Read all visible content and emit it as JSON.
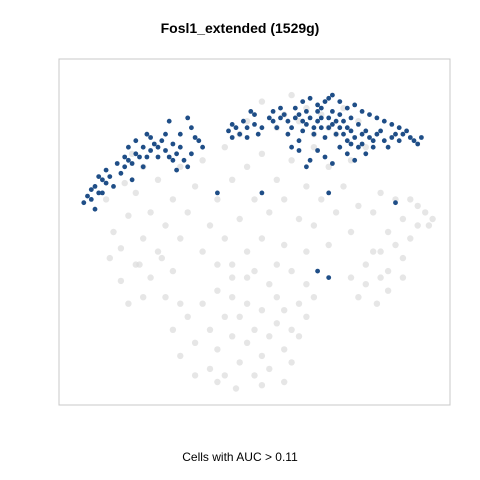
{
  "chart_data": {
    "type": "scatter",
    "title": "Fosl1_extended (1529g)",
    "caption": "Cells with AUC > 0.11",
    "xlim": [
      0,
      100
    ],
    "ylim": [
      0,
      100
    ],
    "grid": false,
    "axes_visible": false,
    "colors": {
      "background_cells": "#dcdcdc",
      "highlighted_cells": "#1f4e87",
      "frame": "#c8c8c8"
    },
    "series": [
      {
        "role": "background",
        "points": [
          [
            10,
            60
          ],
          [
            12,
            50
          ],
          [
            14,
            45
          ],
          [
            15,
            65
          ],
          [
            16,
            55
          ],
          [
            18,
            40
          ],
          [
            18,
            62
          ],
          [
            20,
            48
          ],
          [
            20,
            70
          ],
          [
            22,
            56
          ],
          [
            24,
            44
          ],
          [
            24,
            66
          ],
          [
            26,
            52
          ],
          [
            28,
            60
          ],
          [
            28,
            38
          ],
          [
            30,
            70
          ],
          [
            30,
            48
          ],
          [
            32,
            56
          ],
          [
            14,
            35
          ],
          [
            34,
            64
          ],
          [
            36,
            44
          ],
          [
            36,
            72
          ],
          [
            11,
            42
          ],
          [
            38,
            52
          ],
          [
            40,
            60
          ],
          [
            40,
            40
          ],
          [
            17,
            74
          ],
          [
            42,
            76
          ],
          [
            42,
            48
          ],
          [
            44,
            66
          ],
          [
            44,
            36
          ],
          [
            46,
            54
          ],
          [
            46,
            80
          ],
          [
            48,
            44
          ],
          [
            48,
            70
          ],
          [
            50,
            60
          ],
          [
            50,
            38
          ],
          [
            52,
            48
          ],
          [
            52,
            74
          ],
          [
            54,
            56
          ],
          [
            54,
            34
          ],
          [
            56,
            66
          ],
          [
            56,
            82
          ],
          [
            58,
            46
          ],
          [
            58,
            60
          ],
          [
            60,
            72
          ],
          [
            60,
            38
          ],
          [
            62,
            54
          ],
          [
            62,
            84
          ],
          [
            64,
            64
          ],
          [
            64,
            44
          ],
          [
            66,
            76
          ],
          [
            66,
            52
          ],
          [
            68,
            86
          ],
          [
            68,
            60
          ],
          [
            70,
            70
          ],
          [
            70,
            46
          ],
          [
            72,
            80
          ],
          [
            72,
            56
          ],
          [
            74,
            88
          ],
          [
            74,
            64
          ],
          [
            76,
            72
          ],
          [
            76,
            50
          ],
          [
            78,
            84
          ],
          [
            78,
            58
          ],
          [
            80,
            76
          ],
          [
            80,
            40
          ],
          [
            82,
            56
          ],
          [
            82,
            44
          ],
          [
            84,
            62
          ],
          [
            84,
            36
          ],
          [
            86,
            50
          ],
          [
            86,
            32
          ],
          [
            88,
            46
          ],
          [
            88,
            60
          ],
          [
            90,
            42
          ],
          [
            90,
            54
          ],
          [
            92,
            48
          ],
          [
            92,
            60
          ],
          [
            94,
            52
          ],
          [
            94,
            58
          ],
          [
            96,
            56
          ],
          [
            97,
            52
          ],
          [
            98,
            54
          ],
          [
            28,
            20
          ],
          [
            30,
            12
          ],
          [
            32,
            24
          ],
          [
            34,
            16
          ],
          [
            36,
            28
          ],
          [
            38,
            8
          ],
          [
            38,
            20
          ],
          [
            40,
            14
          ],
          [
            40,
            32
          ],
          [
            42,
            24
          ],
          [
            42,
            6
          ],
          [
            44,
            18
          ],
          [
            44,
            30
          ],
          [
            46,
            10
          ],
          [
            46,
            24
          ],
          [
            48,
            16
          ],
          [
            48,
            28
          ],
          [
            50,
            6
          ],
          [
            50,
            20
          ],
          [
            52,
            12
          ],
          [
            52,
            26
          ],
          [
            54,
            18
          ],
          [
            54,
            8
          ],
          [
            56,
            22
          ],
          [
            56,
            30
          ],
          [
            58,
            14
          ],
          [
            58,
            26
          ],
          [
            60,
            20
          ],
          [
            60,
            10
          ],
          [
            62,
            28
          ],
          [
            62,
            18
          ],
          [
            64,
            24
          ],
          [
            34,
            6
          ],
          [
            30,
            28
          ],
          [
            48,
            36
          ],
          [
            56,
            40
          ],
          [
            64,
            34
          ],
          [
            44,
            40
          ],
          [
            26,
            30
          ],
          [
            66,
            30
          ],
          [
            45,
            2
          ],
          [
            52,
            3
          ],
          [
            58,
            4
          ],
          [
            40,
            4
          ],
          [
            78,
            30
          ],
          [
            80,
            34
          ],
          [
            83,
            28
          ],
          [
            86,
            38
          ],
          [
            76,
            36
          ],
          [
            90,
            36
          ],
          [
            84,
            44
          ],
          [
            20,
            30
          ],
          [
            22,
            36
          ],
          [
            16,
            28
          ],
          [
            19,
            40
          ],
          [
            25,
            42
          ],
          [
            58,
            86
          ],
          [
            64,
            88
          ],
          [
            70,
            82
          ],
          [
            52,
            90
          ],
          [
            66,
            80
          ],
          [
            60,
            92
          ],
          [
            48,
            84
          ]
        ]
      },
      {
        "role": "highlighted",
        "points": [
          [
            4,
            59
          ],
          [
            5,
            61
          ],
          [
            6,
            63
          ],
          [
            6,
            60
          ],
          [
            7,
            64
          ],
          [
            8,
            62
          ],
          [
            9,
            66
          ],
          [
            10,
            65
          ],
          [
            9,
            62
          ],
          [
            11,
            67
          ],
          [
            10,
            69
          ],
          [
            12,
            64
          ],
          [
            8,
            67
          ],
          [
            7,
            57
          ],
          [
            14,
            68
          ],
          [
            15,
            70
          ],
          [
            16,
            72
          ],
          [
            17,
            71
          ],
          [
            18,
            74
          ],
          [
            19,
            73
          ],
          [
            20,
            70
          ],
          [
            21,
            73
          ],
          [
            22,
            75
          ],
          [
            23,
            77
          ],
          [
            24,
            76
          ],
          [
            25,
            78
          ],
          [
            26,
            80
          ],
          [
            24,
            73
          ],
          [
            22,
            79
          ],
          [
            20,
            76
          ],
          [
            18,
            78
          ],
          [
            16,
            76
          ],
          [
            26,
            75
          ],
          [
            27,
            73
          ],
          [
            28,
            72
          ],
          [
            29,
            74
          ],
          [
            30,
            76
          ],
          [
            31,
            72
          ],
          [
            32,
            70
          ],
          [
            29,
            69
          ],
          [
            30,
            80
          ],
          [
            33,
            82
          ],
          [
            34,
            79
          ],
          [
            35,
            78
          ],
          [
            32,
            85
          ],
          [
            27,
            84
          ],
          [
            21,
            80
          ],
          [
            15,
            73
          ],
          [
            13,
            71
          ],
          [
            28,
            77
          ],
          [
            33,
            74
          ],
          [
            36,
            76
          ],
          [
            17,
            66
          ],
          [
            43,
            81
          ],
          [
            44,
            83
          ],
          [
            45,
            82
          ],
          [
            46,
            80
          ],
          [
            47,
            84
          ],
          [
            48,
            82
          ],
          [
            44,
            79
          ],
          [
            49,
            87
          ],
          [
            50,
            86
          ],
          [
            50,
            83
          ],
          [
            48,
            79
          ],
          [
            51,
            80
          ],
          [
            52,
            82
          ],
          [
            54,
            85
          ],
          [
            55,
            84
          ],
          [
            56,
            82
          ],
          [
            55,
            87
          ],
          [
            57,
            85
          ],
          [
            57,
            88
          ],
          [
            58,
            86
          ],
          [
            59,
            84
          ],
          [
            59,
            80
          ],
          [
            60,
            82
          ],
          [
            61,
            85
          ],
          [
            61,
            88
          ],
          [
            62,
            86
          ],
          [
            63,
            84
          ],
          [
            63,
            81
          ],
          [
            64,
            83
          ],
          [
            64,
            87
          ],
          [
            65,
            85
          ],
          [
            66,
            82
          ],
          [
            66,
            80
          ],
          [
            67,
            84
          ],
          [
            67,
            87
          ],
          [
            68,
            85
          ],
          [
            68,
            82
          ],
          [
            69,
            79
          ],
          [
            70,
            82
          ],
          [
            70,
            85
          ],
          [
            71,
            87
          ],
          [
            71,
            83
          ],
          [
            72,
            80
          ],
          [
            72,
            84
          ],
          [
            73,
            82
          ],
          [
            73,
            86
          ],
          [
            74,
            84
          ],
          [
            74,
            80
          ],
          [
            75,
            78
          ],
          [
            75,
            82
          ],
          [
            76,
            85
          ],
          [
            76,
            81
          ],
          [
            77,
            79
          ],
          [
            78,
            83
          ],
          [
            79,
            80
          ],
          [
            79,
            77
          ],
          [
            80,
            81
          ],
          [
            81,
            79
          ],
          [
            82,
            78
          ],
          [
            83,
            80
          ],
          [
            84,
            81
          ],
          [
            85,
            78
          ],
          [
            86,
            76
          ],
          [
            87,
            79
          ],
          [
            88,
            80
          ],
          [
            89,
            78
          ],
          [
            90,
            80
          ],
          [
            91,
            81
          ],
          [
            92,
            79
          ],
          [
            93,
            78
          ],
          [
            94,
            77
          ],
          [
            95,
            79
          ],
          [
            60,
            76
          ],
          [
            62,
            78
          ],
          [
            65,
            72
          ],
          [
            67,
            75
          ],
          [
            69,
            73
          ],
          [
            71,
            71
          ],
          [
            73,
            76
          ],
          [
            75,
            74
          ],
          [
            77,
            72
          ],
          [
            76,
            77
          ],
          [
            78,
            76
          ],
          [
            80,
            74
          ],
          [
            82,
            76
          ],
          [
            63,
            90
          ],
          [
            65,
            91
          ],
          [
            67,
            89
          ],
          [
            69,
            90
          ],
          [
            71,
            92
          ],
          [
            73,
            90
          ],
          [
            75,
            88
          ],
          [
            77,
            89
          ],
          [
            79,
            87
          ],
          [
            81,
            86
          ],
          [
            83,
            85
          ],
          [
            85,
            84
          ],
          [
            87,
            83
          ],
          [
            89,
            82
          ],
          [
            62,
            75
          ],
          [
            64,
            70
          ],
          [
            68,
            88
          ],
          [
            70,
            91
          ],
          [
            40,
            62
          ],
          [
            52,
            62
          ],
          [
            70,
            62
          ],
          [
            67,
            38
          ],
          [
            70,
            36
          ],
          [
            88,
            59
          ],
          [
            104,
            68
          ]
        ]
      }
    ]
  }
}
